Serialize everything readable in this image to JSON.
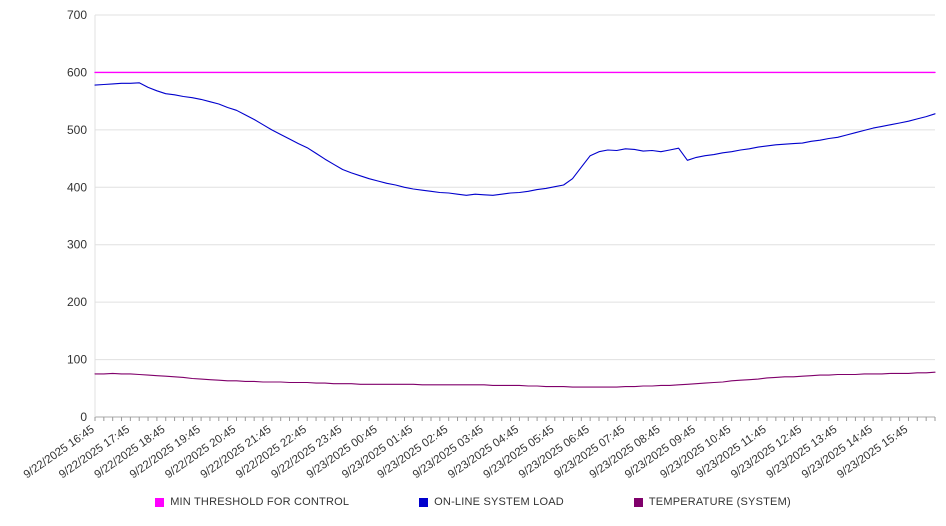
{
  "chart_data": {
    "type": "line",
    "title": "",
    "xlabel": "",
    "ylabel": "",
    "ylim": [
      0,
      700
    ],
    "yticks": [
      0,
      100,
      200,
      300,
      400,
      500,
      600,
      700
    ],
    "grid": true,
    "legend_position": "bottom",
    "label_every": 4,
    "x_labels": [
      "9/22/2025 16:45",
      "9/22/2025 17:45",
      "9/22/2025 18:45",
      "9/22/2025 19:45",
      "9/22/2025 20:45",
      "9/22/2025 21:45",
      "9/22/2025 22:45",
      "9/22/2025 23:45",
      "9/23/2025 00:45",
      "9/23/2025 01:45",
      "9/23/2025 02:45",
      "9/23/2025 03:45",
      "9/23/2025 04:45",
      "9/23/2025 05:45",
      "9/23/2025 06:45",
      "9/23/2025 07:45",
      "9/23/2025 08:45",
      "9/23/2025 09:45",
      "9/23/2025 10:45",
      "9/23/2025 11:45",
      "9/23/2025 12:45",
      "9/23/2025 13:45",
      "9/23/2025 14:45",
      "9/23/2025 15:45"
    ],
    "series": [
      {
        "name": "MIN THRESHOLD FOR CONTROL",
        "color": "#ff00ff",
        "values": [
          600,
          600
        ]
      },
      {
        "name": "ON-LINE SYSTEM LOAD",
        "color": "#0000cd",
        "values": [
          578,
          579,
          580,
          581,
          581,
          582,
          574,
          568,
          563,
          561,
          558,
          556,
          553,
          549,
          545,
          539,
          534,
          526,
          518,
          509,
          500,
          492,
          484,
          476,
          469,
          459,
          449,
          440,
          431,
          425,
          420,
          415,
          411,
          407,
          404,
          400,
          397,
          395,
          393,
          391,
          390,
          388,
          386,
          388,
          387,
          386,
          388,
          390,
          391,
          393,
          396,
          398,
          401,
          404,
          415,
          435,
          455,
          462,
          465,
          464,
          467,
          466,
          463,
          464,
          462,
          465,
          468,
          447,
          452,
          455,
          457,
          460,
          462,
          465,
          467,
          470,
          472,
          474,
          475,
          476,
          477,
          480,
          482,
          485,
          487,
          491,
          495,
          499,
          503,
          506,
          509,
          512,
          515,
          519,
          523,
          528
        ]
      },
      {
        "name": "TEMPERATURE (SYSTEM)",
        "color": "#80006b",
        "values": [
          75,
          75,
          76,
          75,
          75,
          74,
          73,
          72,
          71,
          70,
          69,
          67,
          66,
          65,
          64,
          63,
          63,
          62,
          62,
          61,
          61,
          61,
          60,
          60,
          60,
          59,
          59,
          58,
          58,
          58,
          57,
          57,
          57,
          57,
          57,
          57,
          57,
          56,
          56,
          56,
          56,
          56,
          56,
          56,
          56,
          55,
          55,
          55,
          55,
          54,
          54,
          53,
          53,
          53,
          52,
          52,
          52,
          52,
          52,
          52,
          53,
          53,
          54,
          54,
          55,
          55,
          56,
          57,
          58,
          59,
          60,
          61,
          63,
          64,
          65,
          66,
          68,
          69,
          70,
          70,
          71,
          72,
          73,
          73,
          74,
          74,
          74,
          75,
          75,
          75,
          76,
          76,
          76,
          77,
          77,
          78
        ]
      }
    ],
    "colors": {
      "gridline": "#e0e0e0",
      "axis_line": "#aaaaaa",
      "tick": "#999999",
      "tick_label": "#333333"
    }
  }
}
